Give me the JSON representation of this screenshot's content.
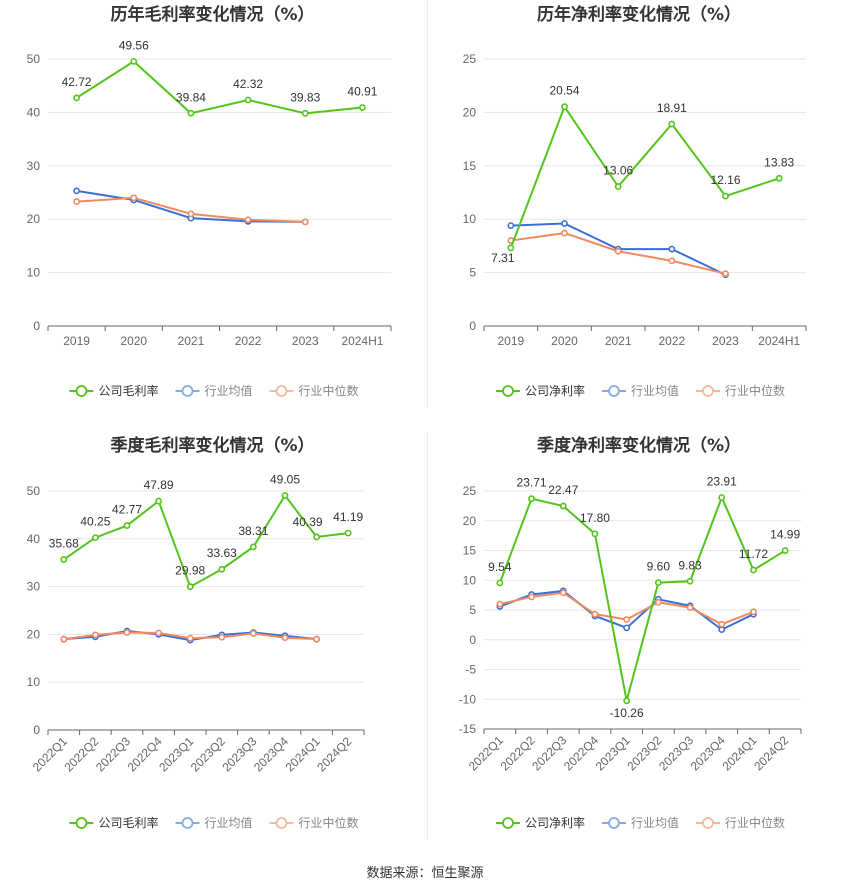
{
  "colors": {
    "company": "#52c41a",
    "avg": "#3a6fd8",
    "median": "#f08a60"
  },
  "legend": {
    "avg": "行业均值",
    "median": "行业中位数"
  },
  "source": "数据来源：恒生聚源",
  "chart_data": [
    {
      "type": "line",
      "title": "历年毛利率变化情况（%）",
      "categories": [
        "2019",
        "2020",
        "2021",
        "2022",
        "2023",
        "2024H1"
      ],
      "ylim": [
        0,
        50
      ],
      "yticks": [
        0,
        10,
        20,
        30,
        40,
        50
      ],
      "series": [
        {
          "name": "公司毛利率",
          "key": "company",
          "values": [
            42.72,
            49.56,
            39.84,
            42.32,
            39.83,
            40.91
          ],
          "labels": [
            "42.72",
            "49.56",
            "39.84",
            "42.32",
            "39.83",
            "40.91"
          ]
        },
        {
          "name": "行业均值",
          "key": "avg",
          "values": [
            25.3,
            23.6,
            20.2,
            19.6,
            19.5,
            null
          ]
        },
        {
          "name": "行业中位数",
          "key": "median",
          "values": [
            23.3,
            24.0,
            21.0,
            19.9,
            19.5,
            null
          ]
        }
      ],
      "legend_position": "bottom",
      "grid": true
    },
    {
      "type": "line",
      "title": "历年净利率变化情况（%）",
      "categories": [
        "2019",
        "2020",
        "2021",
        "2022",
        "2023",
        "2024H1"
      ],
      "ylim": [
        0,
        25
      ],
      "yticks": [
        0,
        5,
        10,
        15,
        20,
        25
      ],
      "series": [
        {
          "name": "公司净利率",
          "key": "company",
          "values": [
            7.31,
            20.54,
            13.06,
            18.91,
            12.16,
            13.83
          ],
          "labels": [
            "7.31",
            "20.54",
            "13.06",
            "18.91",
            "12.16",
            "13.83"
          ]
        },
        {
          "name": "行业均值",
          "key": "avg",
          "values": [
            9.4,
            9.6,
            7.2,
            7.2,
            4.8,
            null
          ]
        },
        {
          "name": "行业中位数",
          "key": "median",
          "values": [
            8.0,
            8.7,
            7.0,
            6.1,
            4.9,
            null
          ]
        }
      ],
      "legend_position": "bottom",
      "grid": true
    },
    {
      "type": "line",
      "title": "季度毛利率变化情况（%）",
      "categories": [
        "2022Q1",
        "2022Q2",
        "2022Q3",
        "2022Q4",
        "2023Q1",
        "2023Q2",
        "2023Q3",
        "2023Q4",
        "2024Q1",
        "2024Q2"
      ],
      "ylim": [
        0,
        50
      ],
      "yticks": [
        0,
        10,
        20,
        30,
        40,
        50
      ],
      "series": [
        {
          "name": "公司毛利率",
          "key": "company",
          "values": [
            35.68,
            40.25,
            42.77,
            47.89,
            29.98,
            33.63,
            38.31,
            49.05,
            40.39,
            41.19
          ],
          "labels": [
            "35.68",
            "40.25",
            "42.77",
            "47.89",
            "29.98",
            "33.63",
            "38.31",
            "49.05",
            "40.39",
            "41.19"
          ]
        },
        {
          "name": "行业均值",
          "key": "avg",
          "values": [
            19.0,
            19.5,
            20.7,
            20.0,
            18.8,
            19.9,
            20.4,
            19.7,
            19.0,
            null
          ]
        },
        {
          "name": "行业中位数",
          "key": "median",
          "values": [
            19.0,
            19.9,
            20.4,
            20.3,
            19.2,
            19.4,
            20.2,
            19.3,
            19.0,
            null
          ]
        }
      ],
      "legend_position": "bottom",
      "grid": true
    },
    {
      "type": "line",
      "title": "季度净利率变化情况（%）",
      "categories": [
        "2022Q1",
        "2022Q2",
        "2022Q3",
        "2022Q4",
        "2023Q1",
        "2023Q2",
        "2023Q3",
        "2023Q4",
        "2024Q1",
        "2024Q2"
      ],
      "ylim": [
        -15,
        25
      ],
      "yticks": [
        -15,
        -10,
        -5,
        0,
        5,
        10,
        15,
        20,
        25
      ],
      "series": [
        {
          "name": "公司净利率",
          "key": "company",
          "values": [
            9.54,
            23.71,
            22.47,
            17.8,
            -10.26,
            9.6,
            9.83,
            23.91,
            11.72,
            14.99
          ],
          "labels": [
            "9.54",
            "23.71",
            "22.47",
            "17.80",
            "-10.26",
            "9.60",
            "9.83",
            "23.91",
            "11.72",
            "14.99"
          ]
        },
        {
          "name": "行业均值",
          "key": "avg",
          "values": [
            5.6,
            7.6,
            8.2,
            4.0,
            2.0,
            6.8,
            5.7,
            1.7,
            4.3,
            null
          ]
        },
        {
          "name": "行业中位数",
          "key": "median",
          "values": [
            6.0,
            7.2,
            7.9,
            4.3,
            3.4,
            6.3,
            5.4,
            2.6,
            4.7,
            null
          ]
        }
      ],
      "legend_position": "bottom",
      "grid": true
    }
  ]
}
